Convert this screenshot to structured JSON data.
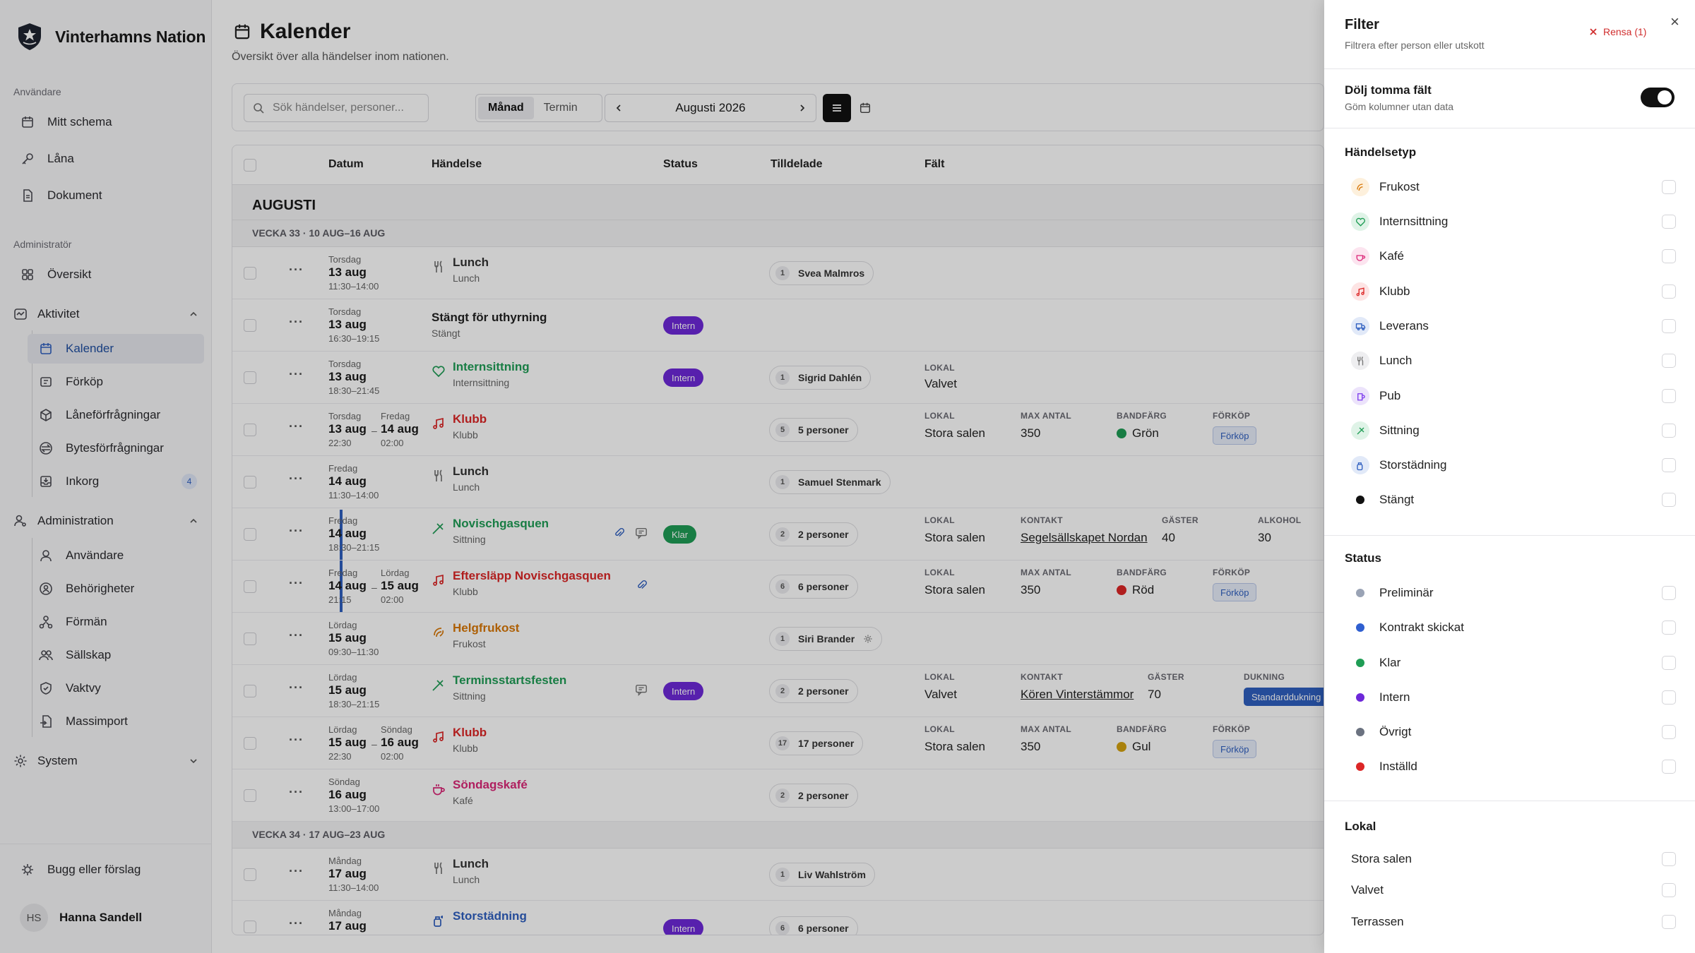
{
  "brand": {
    "name": "Vinterhamns Nation"
  },
  "sidebar": {
    "section_user": "Användare",
    "user_items": [
      {
        "label": "Mitt schema"
      },
      {
        "label": "Låna"
      },
      {
        "label": "Dokument"
      }
    ],
    "section_admin": "Administratör",
    "overview": "Översikt",
    "group_activity": "Aktivitet",
    "activity_items": [
      {
        "label": "Kalender"
      },
      {
        "label": "Förköp"
      },
      {
        "label": "Låneförfrågningar"
      },
      {
        "label": "Bytesförfrågningar"
      },
      {
        "label": "Inkorg",
        "badge": "4"
      }
    ],
    "group_administration": "Administration",
    "administration_items": [
      {
        "label": "Användare"
      },
      {
        "label": "Behörigheter"
      },
      {
        "label": "Förmän"
      },
      {
        "label": "Sällskap"
      },
      {
        "label": "Vaktvy"
      },
      {
        "label": "Massimport"
      }
    ],
    "group_system": "System",
    "feedback": "Bugg eller förslag",
    "user": {
      "initials": "HS",
      "name": "Hanna Sandell"
    }
  },
  "page": {
    "title": "Kalender",
    "subtitle": "Översikt över alla händelser inom nationen."
  },
  "toolbar": {
    "search_placeholder": "Sök händelser, personer...",
    "view_month": "Månad",
    "view_term": "Termin",
    "period": "Augusti 2026"
  },
  "table": {
    "columns": {
      "date": "Datum",
      "event": "Händelse",
      "status": "Status",
      "assigned": "Tilldelade",
      "fields": "Fält"
    },
    "month": "AUGUSTI",
    "week33": "VECKA 33 · 10 AUG–16 AUG",
    "week34": "VECKA 34 · 17 AUG–23 AUG",
    "rows": [
      {
        "day": "Torsdag",
        "date": "13 aug",
        "time": "11:30–14:00",
        "name": "Lunch",
        "type": "Lunch",
        "assigned": {
          "n": "1",
          "label": "Svea Malmros"
        }
      },
      {
        "day": "Torsdag",
        "date": "13 aug",
        "time": "16:30–19:15",
        "name": "Stängt för uthyrning",
        "type": "Stängt",
        "status": "Intern"
      },
      {
        "day": "Torsdag",
        "date": "13 aug",
        "time": "18:30–21:45",
        "name": "Internsittning",
        "type": "Internsittning",
        "status": "Intern",
        "assigned": {
          "n": "1",
          "label": "Sigrid Dahlén"
        },
        "f1_label": "LOKAL",
        "f1_value": "Valvet"
      },
      {
        "day": "Torsdag",
        "date": "13 aug",
        "time": "22:30",
        "day2": "Fredag",
        "date2": "14 aug",
        "time2": "02:00",
        "name": "Klubb",
        "type": "Klubb",
        "assigned": {
          "n": "5",
          "label": "5 personer"
        },
        "f1_label": "LOKAL",
        "f1_value": "Stora salen",
        "f2_label": "MAX ANTAL",
        "f2_value": "350",
        "f3_label": "BANDFÄRG",
        "f3_value": "Grön",
        "f4_label": "FÖRKÖP",
        "f4_value": "Förköp"
      },
      {
        "day": "Fredag",
        "date": "14 aug",
        "time": "11:30–14:00",
        "name": "Lunch",
        "type": "Lunch",
        "assigned": {
          "n": "1",
          "label": "Samuel Stenmark"
        }
      },
      {
        "day": "Fredag",
        "date": "14 aug",
        "time": "18:30–21:15",
        "name": "Novischgasquen",
        "type": "Sittning",
        "status": "Klar",
        "assigned": {
          "n": "2",
          "label": "2 personer"
        },
        "f1_label": "LOKAL",
        "f1_value": "Stora salen",
        "f2_label": "KONTAKT",
        "f2_value": "Segelsällskapet Nordan",
        "f3_label": "GÄSTER",
        "f3_value": "40",
        "f4_label": "ALKOHOL",
        "f4_value": "30"
      },
      {
        "day": "Fredag",
        "date": "14 aug",
        "time": "21:15",
        "day2": "Lördag",
        "date2": "15 aug",
        "time2": "02:00",
        "name": "Eftersläpp Novischgasquen",
        "type": "Klubb",
        "assigned": {
          "n": "6",
          "label": "6 personer"
        },
        "f1_label": "LOKAL",
        "f1_value": "Stora salen",
        "f2_label": "MAX ANTAL",
        "f2_value": "350",
        "f3_label": "BANDFÄRG",
        "f3_value": "Röd",
        "f4_label": "FÖRKÖP",
        "f4_value": "Förköp"
      },
      {
        "day": "Lördag",
        "date": "15 aug",
        "time": "09:30–11:30",
        "name": "Helgfrukost",
        "type": "Frukost",
        "assigned": {
          "n": "1",
          "label": "Siri Brander"
        }
      },
      {
        "day": "Lördag",
        "date": "15 aug",
        "time": "18:30–21:15",
        "name": "Terminsstartsfesten",
        "type": "Sittning",
        "status": "Intern",
        "assigned": {
          "n": "2",
          "label": "2 personer"
        },
        "f1_label": "LOKAL",
        "f1_value": "Valvet",
        "f2_label": "KONTAKT",
        "f2_value": "Kören Vinterstämmor",
        "f3_label": "GÄSTER",
        "f3_value": "70",
        "f4_label": "DUKNING",
        "f4_value": "Standarddukning"
      },
      {
        "day": "Lördag",
        "date": "15 aug",
        "time": "22:30",
        "day2": "Söndag",
        "date2": "16 aug",
        "time2": "02:00",
        "name": "Klubb",
        "type": "Klubb",
        "assigned": {
          "n": "17",
          "label": "17 personer"
        },
        "f1_label": "LOKAL",
        "f1_value": "Stora salen",
        "f2_label": "MAX ANTAL",
        "f2_value": "350",
        "f3_label": "BANDFÄRG",
        "f3_value": "Gul",
        "f4_label": "FÖRKÖP",
        "f4_value": "Förköp"
      },
      {
        "day": "Söndag",
        "date": "16 aug",
        "time": "13:00–17:00",
        "name": "Söndagskafé",
        "type": "Kafé",
        "assigned": {
          "n": "2",
          "label": "2 personer"
        }
      },
      {
        "day": "Måndag",
        "date": "17 aug",
        "time": "11:30–14:00",
        "name": "Lunch",
        "type": "Lunch",
        "assigned": {
          "n": "1",
          "label": "Liv Wahlström"
        }
      },
      {
        "day": "Måndag",
        "date": "17 aug",
        "name": "Storstädning",
        "status": "Intern",
        "assigned": {
          "n": "6",
          "label": "6 personer"
        }
      }
    ]
  },
  "filter": {
    "title": "Filter",
    "subtitle": "Filtrera efter person eller utskott",
    "clear": "Rensa (1)",
    "close": "×",
    "hide_empty_title": "Dölj tomma fält",
    "hide_empty_sub": "Göm kolumner utan data",
    "event_type_title": "Händelsetyp",
    "event_types": [
      {
        "label": "Frukost"
      },
      {
        "label": "Internsittning"
      },
      {
        "label": "Kafé"
      },
      {
        "label": "Klubb"
      },
      {
        "label": "Leverans"
      },
      {
        "label": "Lunch"
      },
      {
        "label": "Pub"
      },
      {
        "label": "Sittning"
      },
      {
        "label": "Storstädning"
      },
      {
        "label": "Stängt"
      }
    ],
    "status_title": "Status",
    "statuses": [
      {
        "label": "Preliminär",
        "color": "#9aa3b5"
      },
      {
        "label": "Kontrakt skickat",
        "color": "#2f5fd0"
      },
      {
        "label": "Klar",
        "color": "#1f9d55"
      },
      {
        "label": "Intern",
        "color": "#6d28d9"
      },
      {
        "label": "Övrigt",
        "color": "#6b7280"
      },
      {
        "label": "Inställd",
        "color": "#dc2626"
      }
    ],
    "venue_title": "Lokal",
    "venues": [
      {
        "label": "Stora salen"
      },
      {
        "label": "Valvet"
      },
      {
        "label": "Terrassen"
      }
    ]
  },
  "colors": {
    "accent": "#2f5fc0",
    "intern": "#6d28d9",
    "klar": "#1f9d55",
    "danger": "#d02d2d",
    "green_band": "#1f9d55",
    "red_band": "#dc2626",
    "yellow_band": "#d4a20f"
  }
}
